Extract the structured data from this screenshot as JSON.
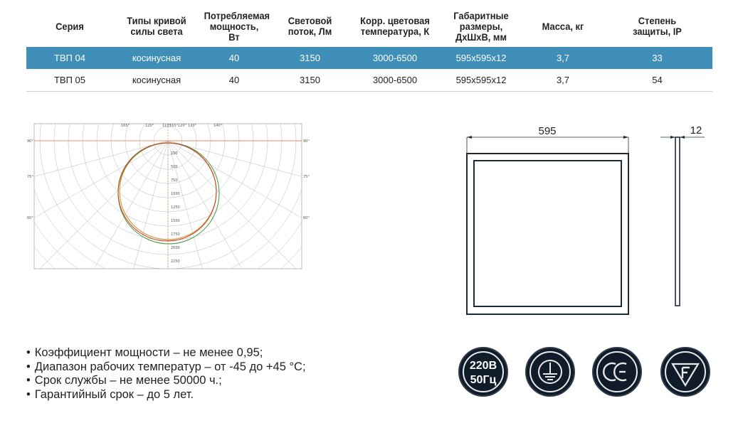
{
  "table": {
    "headers": [
      [
        "Серия"
      ],
      [
        "Типы кривой",
        "силы света"
      ],
      [
        "Потребляемая",
        "мощность, Вт"
      ],
      [
        "Световой",
        "поток, Лм"
      ],
      [
        "Корр. цветовая",
        "температура, К"
      ],
      [
        "Габаритные",
        "размеры,",
        "ДхШхВ, мм"
      ],
      [
        "Масса, кг"
      ],
      [
        "Степень",
        "защиты, IP"
      ]
    ],
    "rows": [
      [
        "ТВП 04",
        "косинусная",
        "40",
        "3150",
        "3000-6500",
        "595х595х12",
        "3,7",
        "33"
      ],
      [
        "ТВП 05",
        "косинусная",
        "40",
        "3150",
        "3000-6500",
        "595х595х12",
        "3,7",
        "54"
      ]
    ]
  },
  "polar": {
    "top_angle_labels": [
      "165°",
      "120°",
      "110°",
      "165°",
      "120°",
      "120°",
      "140°"
    ],
    "left_angle_labels": [
      "90°",
      "75°",
      "60°"
    ],
    "right_angle_labels": [
      "90°",
      "75°",
      "60°"
    ],
    "radial_labels": [
      "250",
      "500",
      "750",
      "1000",
      "1250",
      "1500",
      "1750",
      "2000",
      "2250"
    ],
    "curve_colors": {
      "red": "#d23a2a",
      "green": "#3c9a3c",
      "orange": "#d2a040",
      "grid": "#b9b9b9"
    }
  },
  "drawing": {
    "width_label": "595",
    "thickness_label": "12",
    "stroke_color": "#1f2a38"
  },
  "notes": [
    "Коэффициент мощности – не менее 0,95;",
    "Диапазон рабочих температур – от -45 до +45 °С;",
    "Срок службы – не менее 50000 ч.;",
    "Гарантийный срок – до 5 лет."
  ],
  "badges": {
    "voltage": [
      "220В",
      "50Гц"
    ],
    "ground_icon": "ground-symbol-icon",
    "ce_icon": "ce-mark-icon",
    "f_icon": "f-triangle-mark-icon",
    "bg_color": "#101c2a"
  }
}
